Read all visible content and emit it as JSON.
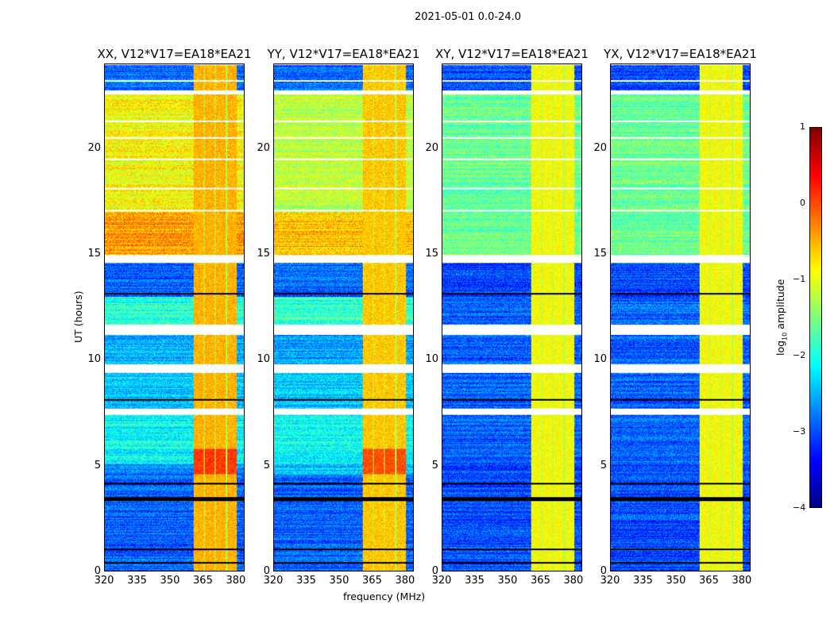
{
  "chart_data": {
    "type": "heatmap",
    "title": "2021-05-01 0.0-24.0",
    "xlabel": "frequency (MHz)",
    "ylabel": "UT (hours)",
    "xlim": [
      320,
      384
    ],
    "ylim": [
      0,
      24
    ],
    "xticks": [
      "320",
      "335",
      "350",
      "365",
      "380"
    ],
    "xtick_values": [
      320,
      335,
      350,
      365,
      380
    ],
    "yticks": [
      "0",
      "5",
      "10",
      "15",
      "20"
    ],
    "ytick_values": [
      0,
      5,
      10,
      15,
      20
    ],
    "panels": [
      {
        "title": "XX, V12*V17=EA18*EA21"
      },
      {
        "title": "YY, V12*V17=EA18*EA21"
      },
      {
        "title": "XY, V12*V17=EA18*EA21"
      },
      {
        "title": "YX, V12*V17=EA18*EA21"
      }
    ],
    "colorbar": {
      "label": "log10 amplitude",
      "label_main": "log",
      "label_sub": "10",
      "label_rest": " amplitude",
      "colormap": "jet",
      "range": [
        -4,
        1
      ],
      "ticks": [
        "1",
        "0",
        "−1",
        "−2",
        "−3",
        "−4"
      ],
      "tick_values": [
        1,
        0,
        -1,
        -2,
        -3,
        -4
      ]
    },
    "segments_ut": [
      {
        "range": [
          0,
          4.6
        ],
        "level": [
          -2.9,
          -2.9,
          -3.0,
          -3.0
        ]
      },
      {
        "range": [
          4.6,
          5.1
        ],
        "level": [
          -2.6,
          -2.4,
          -3.0,
          -3.0
        ]
      },
      {
        "range": [
          5.1,
          7.4
        ],
        "level": [
          -2.1,
          -2.1,
          -2.9,
          -2.9
        ]
      },
      {
        "range": [
          7.7,
          9.4
        ],
        "level": [
          -2.4,
          -2.4,
          -2.9,
          -2.9
        ]
      },
      {
        "range": [
          9.8,
          11.2
        ],
        "level": [
          -2.5,
          -2.6,
          -2.9,
          -2.9
        ]
      },
      {
        "range": [
          11.7,
          13.0
        ],
        "level": [
          -1.9,
          -1.9,
          -2.9,
          -2.9
        ]
      },
      {
        "range": [
          13.0,
          14.6
        ],
        "level": [
          -2.9,
          -2.8,
          -3.0,
          -3.0
        ]
      },
      {
        "range": [
          15.0,
          17.0
        ],
        "level": [
          -0.4,
          -0.6,
          -1.6,
          -1.6
        ]
      },
      {
        "range": [
          17.0,
          22.6
        ],
        "level": [
          -0.9,
          -1.2,
          -1.6,
          -1.6
        ]
      },
      {
        "range": [
          22.8,
          24.0
        ],
        "level": [
          -2.9,
          -2.9,
          -3.0,
          -3.0
        ]
      }
    ],
    "rfi_band_mhz": [
      [
        360.5,
        365.3
      ],
      [
        365.8,
        370.3
      ],
      [
        370.8,
        375.6
      ],
      [
        376.1,
        380.4
      ]
    ],
    "rfi_level": [
      -0.5,
      -0.6,
      -0.9,
      -0.9
    ],
    "flagged_ut": [
      [
        7.4,
        7.7
      ],
      [
        14.6,
        15.0
      ],
      [
        22.6,
        22.8
      ],
      [
        17.05,
        17.12
      ],
      [
        18.1,
        18.16
      ],
      [
        19.5,
        19.56
      ],
      [
        20.5,
        20.56
      ],
      [
        21.3,
        21.36
      ],
      [
        23.2,
        23.26
      ]
    ],
    "zero_ut": [
      [
        0.35,
        0.45
      ],
      [
        1.0,
        1.06
      ],
      [
        3.3,
        3.5
      ],
      [
        4.1,
        4.2
      ],
      [
        8.1,
        8.16
      ],
      [
        9.4,
        9.8
      ],
      [
        11.2,
        11.7
      ],
      [
        13.1,
        13.2
      ]
    ]
  }
}
